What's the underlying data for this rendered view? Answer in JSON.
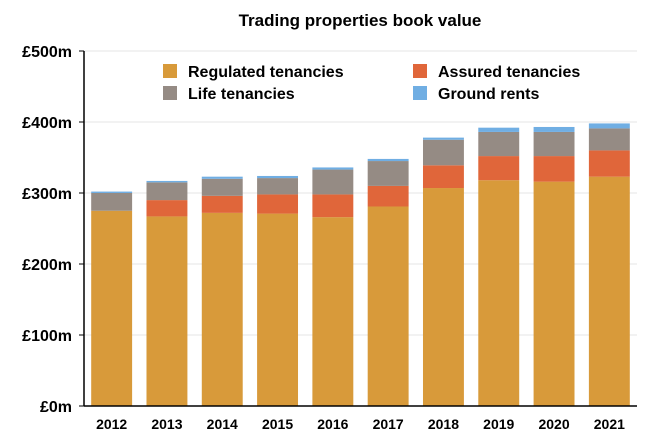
{
  "chart_data": {
    "type": "bar",
    "stacked": true,
    "title": "Trading properties book value",
    "xlabel": "",
    "ylabel": "",
    "ylim": [
      0,
      500
    ],
    "yticks": [
      "£0m",
      "£100m",
      "£200m",
      "£300m",
      "£400m",
      "£500m"
    ],
    "grid": true,
    "legend_position": "top",
    "categories": [
      "2012",
      "2013",
      "2014",
      "2015",
      "2016",
      "2017",
      "2018",
      "2019",
      "2020",
      "2021"
    ],
    "series": [
      {
        "name": "Regulated tenancies",
        "color": "#d89a3a",
        "values": [
          275,
          267,
          272,
          271,
          266,
          281,
          307,
          318,
          316,
          323
        ]
      },
      {
        "name": "Assured tenancies",
        "color": "#e0663a",
        "values": [
          0,
          23,
          24,
          27,
          32,
          29,
          32,
          34,
          36,
          37
        ]
      },
      {
        "name": "Life tenancies",
        "color": "#958b84",
        "values": [
          25,
          25,
          24,
          23,
          35,
          35,
          36,
          34,
          34,
          31
        ]
      },
      {
        "name": "Ground rents",
        "color": "#70aee3",
        "values": [
          2,
          2,
          3,
          3,
          3,
          3,
          3,
          6,
          7,
          7
        ]
      }
    ]
  }
}
